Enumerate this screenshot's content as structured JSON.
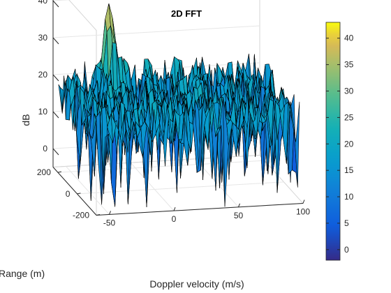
{
  "chart_data": {
    "type": "surface",
    "title": "2D FFT",
    "xlabel": "Doppler velocity (m/s)",
    "ylabel": "Range (m)",
    "zlabel": "dB",
    "xlim": [
      -60,
      100
    ],
    "ylim": [
      -200,
      250
    ],
    "zlim": [
      -5,
      45
    ],
    "x_ticks": [
      "-50",
      "0",
      "50",
      "100"
    ],
    "y_ticks": [
      "200",
      "0",
      "-200"
    ],
    "z_ticks": [
      "0",
      "10",
      "20",
      "30",
      "40"
    ],
    "colorbar": {
      "colormap": "parula",
      "range": [
        -2,
        43
      ],
      "ticks": [
        "0",
        "5",
        "10",
        "15",
        "20",
        "25",
        "30",
        "35",
        "40"
      ]
    },
    "peak": {
      "doppler_velocity": -20,
      "range": 200,
      "db": 40
    },
    "noise_floor_db": 17,
    "grid": true
  }
}
